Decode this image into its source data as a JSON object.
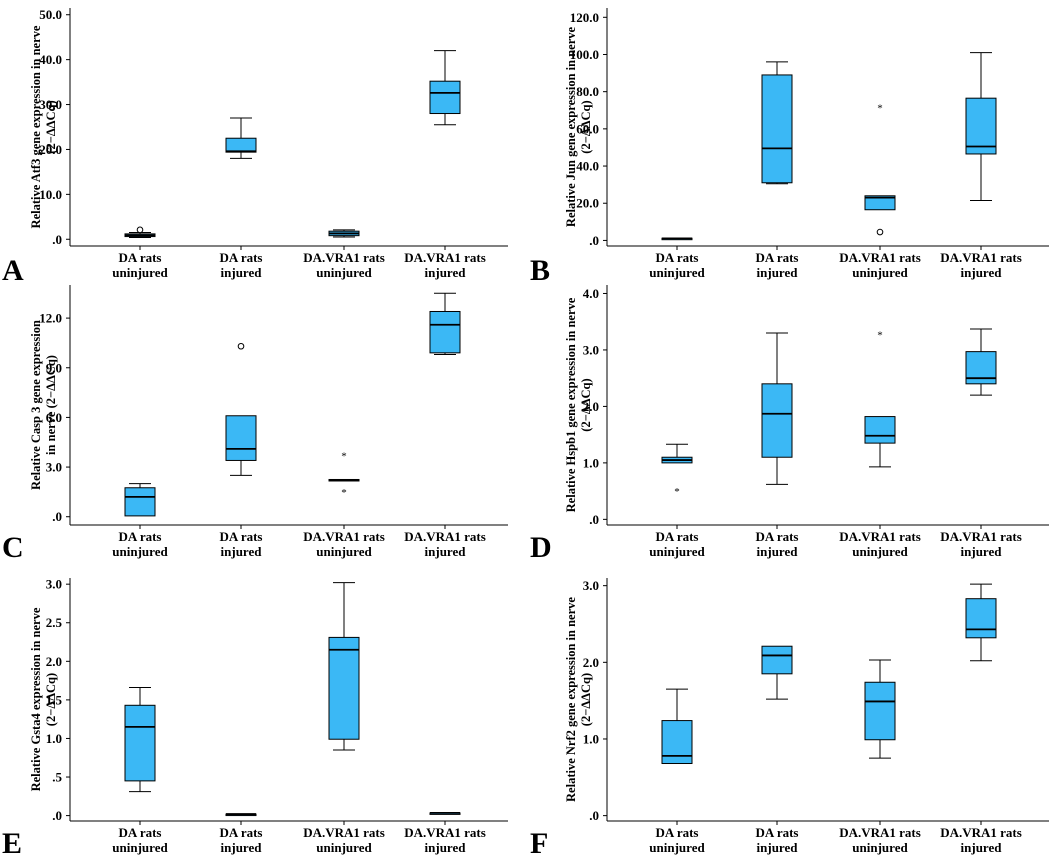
{
  "colors": {
    "box_fill": "#3bb8f5",
    "axis": "#000000"
  },
  "figure_categories": [
    [
      "DA rats",
      "uninjured"
    ],
    [
      "DA rats",
      "injured"
    ],
    [
      "DA.VRA1 rats",
      "uninjured"
    ],
    [
      "DA.VRA1 rats",
      "injured"
    ]
  ],
  "chart_data": [
    {
      "type": "box",
      "panel_label": "A",
      "ylabel": [
        "Relative Atf3 gene expression in nerve",
        "(2−ΔΔCq)"
      ],
      "ylim": [
        -1.5,
        51.5
      ],
      "yticks": [
        0,
        10,
        20,
        30,
        40,
        50
      ],
      "ytick_labels": [
        ".0",
        "10.0",
        "20.0",
        "30.0",
        "40.0",
        "50.0"
      ],
      "categories": [
        "DA rats uninjured",
        "DA rats injured",
        "DA.VRA1 rats uninjured",
        "DA.VRA1 rats injured"
      ],
      "boxes": [
        {
          "min": 0.4,
          "q1": 0.6,
          "median": 0.9,
          "q3": 1.2,
          "max": 1.5
        },
        {
          "min": 18.0,
          "q1": 19.4,
          "median": 19.6,
          "q3": 22.5,
          "max": 27.0
        },
        {
          "min": 0.5,
          "q1": 0.8,
          "median": 1.3,
          "q3": 1.8,
          "max": 2.1
        },
        {
          "min": 25.5,
          "q1": 28.0,
          "median": 32.6,
          "q3": 35.2,
          "max": 42.0
        }
      ],
      "outliers": [
        {
          "category": 0,
          "value": 2.1,
          "marker": "circle"
        }
      ]
    },
    {
      "type": "box",
      "panel_label": "B",
      "ylabel": [
        "Relative Jun gene expression in nerve",
        "(2−ΔΔCq)"
      ],
      "ylim": [
        -3,
        125
      ],
      "yticks": [
        0,
        20,
        40,
        60,
        80,
        100,
        120
      ],
      "ytick_labels": [
        ".0",
        "20.0",
        "40.0",
        "60.0",
        "80.0",
        "100.0",
        "120.0"
      ],
      "categories": [
        "DA rats uninjured",
        "DA rats injured",
        "DA.VRA1 rats uninjured",
        "DA.VRA1 rats injured"
      ],
      "boxes": [
        {
          "min": 0.9,
          "q1": 1.0,
          "median": 1.1,
          "q3": 1.2,
          "max": 1.3
        },
        {
          "min": 30.5,
          "q1": 31.0,
          "median": 49.5,
          "q3": 89.0,
          "max": 96.0
        },
        {
          "min": 16.5,
          "q1": 16.5,
          "median": 23.0,
          "q3": 24.0,
          "max": 24.0
        },
        {
          "min": 21.5,
          "q1": 46.5,
          "median": 50.5,
          "q3": 76.5,
          "max": 101.0
        }
      ],
      "outliers": [
        {
          "category": 2,
          "value": 71.5,
          "marker": "star"
        },
        {
          "category": 2,
          "value": 4.5,
          "marker": "circle"
        }
      ]
    },
    {
      "type": "box",
      "panel_label": "C",
      "ylabel": [
        "Relative Casp 3 gene expression",
        "in nerve (2−ΔΔCq)"
      ],
      "ylim": [
        -0.5,
        14
      ],
      "yticks": [
        0,
        3,
        6,
        9,
        12
      ],
      "ytick_labels": [
        ".0",
        "3.0",
        "6.0",
        "9.0",
        "12.0"
      ],
      "categories": [
        "DA rats uninjured",
        "DA rats injured",
        "DA.VRA1 rats uninjured",
        "DA.VRA1 rats injured"
      ],
      "boxes": [
        {
          "min": 0.05,
          "q1": 0.05,
          "median": 1.2,
          "q3": 1.75,
          "max": 2.0
        },
        {
          "min": 2.5,
          "q1": 3.4,
          "median": 4.1,
          "q3": 6.1,
          "max": 6.1
        },
        {
          "min": 2.2,
          "q1": 2.2,
          "median": 2.2,
          "q3": 2.25,
          "max": 2.25
        },
        {
          "min": 9.8,
          "q1": 9.9,
          "median": 11.6,
          "q3": 12.4,
          "max": 13.5
        }
      ],
      "outliers": [
        {
          "category": 1,
          "value": 10.3,
          "marker": "circle"
        },
        {
          "category": 2,
          "value": 3.7,
          "marker": "star"
        },
        {
          "category": 2,
          "value": 1.5,
          "marker": "star"
        }
      ]
    },
    {
      "type": "box",
      "panel_label": "D",
      "ylabel": [
        "Relative Hspb1 gene expression in nerve",
        "(2−ΔΔCq)"
      ],
      "ylim": [
        -0.1,
        4.15
      ],
      "yticks": [
        0,
        1,
        2,
        3,
        4
      ],
      "ytick_labels": [
        ".0",
        "1.0",
        "2.0",
        "3.0",
        "4.0"
      ],
      "categories": [
        "DA rats uninjured",
        "DA rats injured",
        "DA.VRA1 rats uninjured",
        "DA.VRA1 rats injured"
      ],
      "boxes": [
        {
          "min": 1.0,
          "q1": 1.0,
          "median": 1.05,
          "q3": 1.1,
          "max": 1.33
        },
        {
          "min": 0.62,
          "q1": 1.1,
          "median": 1.87,
          "q3": 2.4,
          "max": 3.3
        },
        {
          "min": 0.93,
          "q1": 1.35,
          "median": 1.48,
          "q3": 1.82,
          "max": 1.82
        },
        {
          "min": 2.2,
          "q1": 2.4,
          "median": 2.5,
          "q3": 2.97,
          "max": 3.37
        }
      ],
      "outliers": [
        {
          "category": 0,
          "value": 0.5,
          "marker": "star"
        },
        {
          "category": 2,
          "value": 3.27,
          "marker": "star"
        }
      ]
    },
    {
      "type": "box",
      "panel_label": "E",
      "ylabel": [
        "Relative Gsta4 expression in nerve",
        "(2−ΔΔCq)"
      ],
      "ylim": [
        -0.07,
        3.08
      ],
      "yticks": [
        0,
        0.5,
        1.0,
        1.5,
        2.0,
        2.5,
        3.0
      ],
      "ytick_labels": [
        ".0",
        ".5",
        "1.0",
        "1.5",
        "2.0",
        "2.5",
        "3.0"
      ],
      "categories": [
        "DA rats uninjured",
        "DA rats injured",
        "DA.VRA1 rats uninjured",
        "DA.VRA1 rats injured"
      ],
      "boxes": [
        {
          "min": 0.31,
          "q1": 0.45,
          "median": 1.15,
          "q3": 1.43,
          "max": 1.66
        },
        {
          "min": 0.02,
          "q1": 0.02,
          "median": 0.02,
          "q3": 0.02,
          "max": 0.02
        },
        {
          "min": 0.85,
          "q1": 0.99,
          "median": 2.15,
          "q3": 2.31,
          "max": 3.02
        },
        {
          "min": 0.035,
          "q1": 0.035,
          "median": 0.035,
          "q3": 0.035,
          "max": 0.035
        }
      ],
      "outliers": []
    },
    {
      "type": "box",
      "panel_label": "F",
      "ylabel": [
        "Relative Nrf2 gene expression in nerve",
        "(2−ΔΔCq)"
      ],
      "ylim": [
        -0.07,
        3.1
      ],
      "yticks": [
        0,
        1,
        2,
        3
      ],
      "ytick_labels": [
        ".0",
        "1.0",
        "2.0",
        "3.0"
      ],
      "categories": [
        "DA rats uninjured",
        "DA rats injured",
        "DA.VRA1 rats uninjured",
        "DA.VRA1 rats injured"
      ],
      "boxes": [
        {
          "min": 0.68,
          "q1": 0.68,
          "median": 0.78,
          "q3": 1.24,
          "max": 1.65
        },
        {
          "min": 1.52,
          "q1": 1.85,
          "median": 2.09,
          "q3": 2.21,
          "max": 2.21
        },
        {
          "min": 0.75,
          "q1": 0.99,
          "median": 1.49,
          "q3": 1.74,
          "max": 2.03
        },
        {
          "min": 2.02,
          "q1": 2.32,
          "median": 2.43,
          "q3": 2.83,
          "max": 3.02
        }
      ],
      "outliers": []
    }
  ]
}
